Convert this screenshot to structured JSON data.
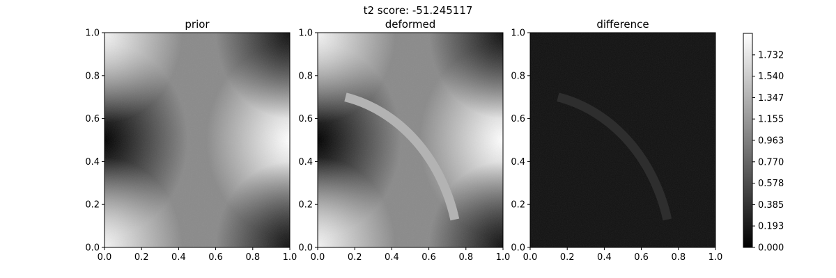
{
  "figure": {
    "suptitle": "t2 score: -51.245117"
  },
  "chart_data": {
    "type": "heatmap",
    "panels": [
      {
        "title": "prior",
        "xlim": [
          0,
          1
        ],
        "ylim": [
          0,
          1
        ],
        "xticks": [
          "0.0",
          "0.2",
          "0.4",
          "0.6",
          "0.8",
          "1.0"
        ],
        "yticks": [
          "0.0",
          "0.2",
          "0.4",
          "0.6",
          "0.8",
          "1.0"
        ],
        "field": "background",
        "arc": false
      },
      {
        "title": "deformed",
        "xlim": [
          0,
          1
        ],
        "ylim": [
          0,
          1
        ],
        "xticks": [
          "0.0",
          "0.2",
          "0.4",
          "0.6",
          "0.8",
          "1.0"
        ],
        "yticks": [
          "0.0",
          "0.2",
          "0.4",
          "0.6",
          "0.8",
          "1.0"
        ],
        "field": "background+arc",
        "arc": true,
        "arc_value": 1.35
      },
      {
        "title": "difference",
        "xlim": [
          0,
          1
        ],
        "ylim": [
          0,
          1
        ],
        "xticks": [
          "0.0",
          "0.2",
          "0.4",
          "0.6",
          "0.8",
          "1.0"
        ],
        "yticks": [
          "0.0",
          "0.2",
          "0.4",
          "0.6",
          "0.8",
          "1.0"
        ],
        "field": "arc-only",
        "arc": true,
        "arc_value": 0.35
      }
    ],
    "arc_path": {
      "center": [
        0.0,
        0.0
      ],
      "radius": 0.78,
      "start": [
        0.15,
        0.7
      ],
      "end": [
        0.74,
        0.13
      ]
    },
    "colorbar": {
      "colormap": "gray",
      "range": [
        0.0,
        1.925
      ],
      "ticks": [
        "0.000",
        "0.193",
        "0.385",
        "0.578",
        "0.770",
        "0.963",
        "1.155",
        "1.347",
        "1.540",
        "1.732"
      ],
      "tick_values": [
        0.0,
        0.193,
        0.385,
        0.578,
        0.77,
        0.963,
        1.155,
        1.347,
        1.54,
        1.732
      ]
    }
  }
}
